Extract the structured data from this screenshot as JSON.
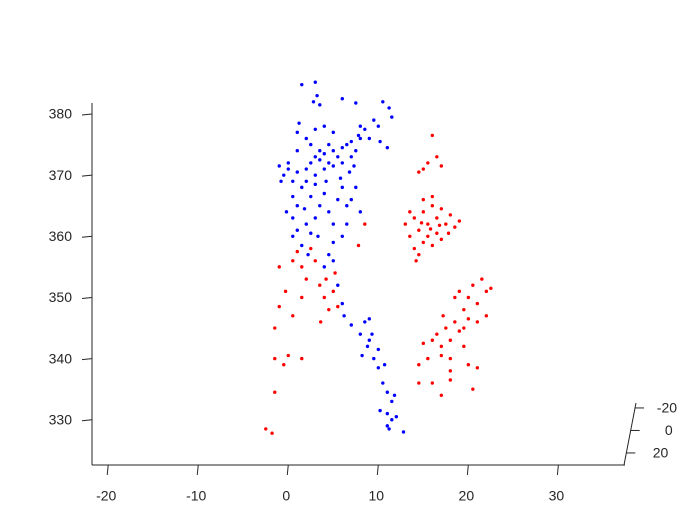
{
  "chart_data": {
    "type": "scatter3",
    "xlim": [
      -21.8,
      37.4
    ],
    "ylim": [
      322.6,
      381.8
    ],
    "zlim": [
      -24.4,
      30.7
    ],
    "xticks": [
      -20,
      -10,
      0,
      10,
      20,
      30
    ],
    "yticks": [
      330,
      340,
      350,
      360,
      370,
      380
    ],
    "zticks": [
      -20,
      0,
      20
    ],
    "series": [
      {
        "color": "#0000ff",
        "x": [
          1.5,
          3,
          3.2,
          2.8,
          3.5,
          6,
          7.5,
          9.5,
          10.5,
          11.2,
          11.5,
          10,
          8.5,
          9,
          10.2,
          11,
          7.8,
          8,
          2,
          2.5,
          3,
          3.5,
          4,
          4.5,
          5,
          5.5,
          6,
          6.5,
          7,
          7.5,
          5,
          4,
          3,
          4.5,
          6,
          7,
          8,
          3.5,
          2,
          1,
          0,
          -0.5,
          -1,
          0.5,
          1.5,
          0,
          -0.8,
          2.5,
          1,
          0.5,
          1,
          2,
          0.5,
          1.5,
          2.5,
          3,
          3.5,
          4,
          4.5,
          5,
          5.5,
          6,
          6.5,
          5,
          4.5,
          4,
          5,
          6,
          6.5,
          7,
          7.5,
          8,
          3,
          1,
          2,
          1,
          1.2,
          3,
          4,
          5,
          2.5,
          0.5,
          -0.2,
          6.8,
          7.3,
          5.8,
          4.2,
          3.3,
          2.2,
          1.8,
          5.5,
          6,
          6.2,
          7,
          8,
          8.5,
          9,
          9.3,
          8.8,
          9.5,
          10,
          10.5,
          9,
          10,
          11,
          11.5,
          11,
          10.2,
          11.5,
          11,
          12,
          11.8,
          12.8,
          11.2,
          8.2,
          10.7
        ],
        "y": [
          384.8,
          385.2,
          383,
          382,
          381.5,
          382.5,
          381.8,
          379,
          382,
          381,
          379.5,
          378,
          377.5,
          376,
          375.5,
          374.5,
          376.5,
          378,
          371,
          372,
          373,
          372.5,
          373.5,
          372,
          374,
          373,
          374.5,
          375,
          375.5,
          374,
          371.5,
          371,
          370,
          375,
          372,
          373,
          376,
          374,
          369,
          370.5,
          371,
          370,
          371.5,
          369,
          368,
          372,
          369,
          366.5,
          365,
          363,
          361,
          362,
          360,
          358.5,
          360.5,
          363,
          365,
          367,
          364,
          362,
          366,
          368,
          365,
          359,
          357,
          355,
          356,
          360,
          362,
          366,
          368,
          364,
          368.5,
          374,
          376,
          377,
          378.5,
          377.5,
          378,
          377,
          375,
          366.5,
          364,
          370.5,
          371.5,
          369.5,
          369,
          360,
          357,
          364.5,
          352,
          349,
          347,
          345.5,
          344,
          346,
          346.5,
          344,
          342,
          340,
          338.5,
          336,
          343,
          341.5,
          334.5,
          333,
          331,
          331.5,
          330,
          329,
          330.5,
          334,
          328,
          328.5,
          340.5,
          339
        ]
      },
      {
        "color": "#ff0000",
        "x": [
          13,
          13.5,
          14,
          14.5,
          15,
          15.5,
          16,
          16.5,
          17,
          17.5,
          18,
          18.5,
          19,
          14,
          14.5,
          15,
          15.5,
          16,
          16.5,
          17,
          15,
          16,
          13.5,
          14.2,
          17.8,
          15.8,
          14.8,
          16.8,
          16,
          16.5,
          15.5,
          17,
          14.5,
          15,
          16.5,
          17,
          17.5,
          18,
          18.5,
          19,
          19.5,
          20,
          20.5,
          21,
          21.5,
          22,
          22.5,
          19,
          18.5,
          20,
          21,
          22,
          19.5,
          18,
          17,
          18,
          20,
          21,
          19.5,
          15.5,
          16,
          17.2,
          16,
          17,
          18,
          20.5,
          14.5,
          15,
          14.5,
          -2.5,
          -1.8,
          -1.5,
          -1.5,
          0,
          1.5,
          -0.5,
          -1.5,
          -1,
          0.5,
          1.5,
          -1,
          0.5,
          1,
          1.5,
          2,
          3,
          3.5,
          4,
          4.5,
          5.5,
          5,
          2.5,
          -0.3,
          8.5,
          7.8,
          5.2,
          4.2,
          3.6
        ],
        "y": [
          362,
          360,
          363,
          361,
          364,
          362,
          365,
          363,
          364.5,
          362,
          363.5,
          361.5,
          362.5,
          358,
          357,
          359,
          360,
          358.5,
          360.5,
          359.5,
          366,
          366.5,
          364,
          356,
          360.5,
          361.2,
          362.2,
          361.8,
          376.5,
          373,
          372,
          371.5,
          370.5,
          371,
          344,
          342,
          345,
          343,
          346,
          344.5,
          348,
          350,
          352,
          349,
          353,
          351,
          351.5,
          351,
          350,
          346.5,
          346,
          347,
          342,
          340,
          340.5,
          338,
          339,
          338.5,
          345,
          340,
          343,
          347,
          336,
          334,
          336.5,
          335,
          339,
          342.5,
          336,
          328.5,
          327.8,
          334.5,
          340,
          340.5,
          340,
          339,
          345,
          348.5,
          347,
          350,
          355,
          356,
          357.5,
          355,
          353,
          356,
          352,
          350,
          348,
          348.5,
          351,
          358,
          351,
          362,
          358.5,
          354,
          353,
          346
        ]
      }
    ]
  }
}
